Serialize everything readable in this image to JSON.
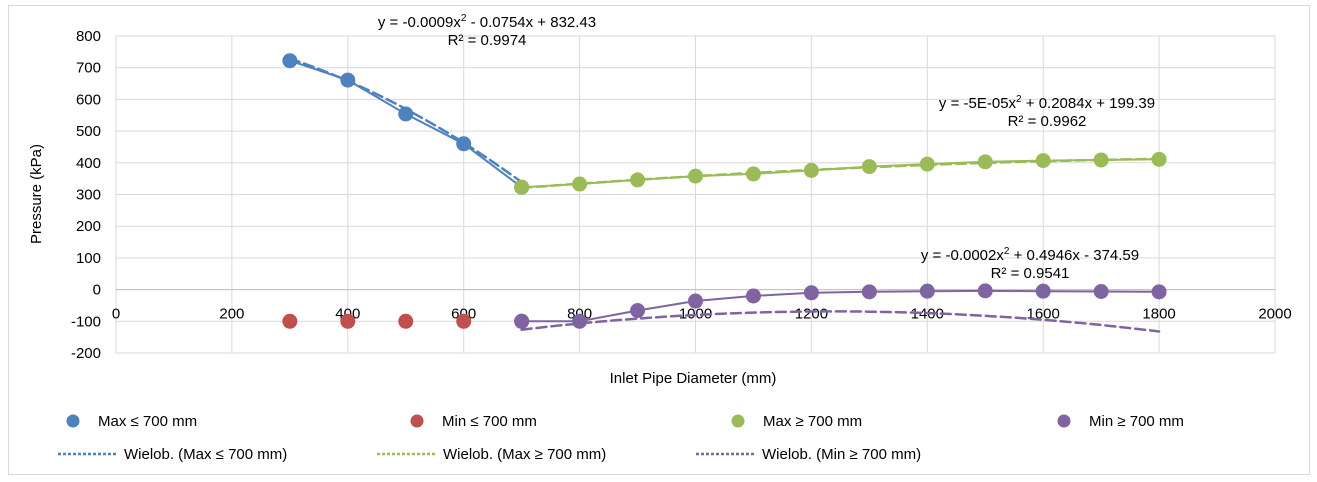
{
  "chart_data": {
    "type": "scatter",
    "xlabel": "Inlet Pipe Diameter (mm)",
    "ylabel": "Pressure (kPa)",
    "xlim": [
      0,
      2000
    ],
    "ylim": [
      -200,
      800
    ],
    "xticks": [
      "0",
      "200",
      "400",
      "600",
      "800",
      "1000",
      "1200",
      "1400",
      "1600",
      "1800",
      "2000"
    ],
    "yticks": [
      "800",
      "700",
      "600",
      "500",
      "400",
      "300",
      "200",
      "100",
      "0",
      "-100",
      "-200"
    ],
    "grid": true,
    "legend_position": "bottom",
    "series": [
      {
        "name": "Max ≤ 700 mm",
        "color": "#4f81bd",
        "points": [
          [
            300,
            722
          ],
          [
            400,
            661
          ],
          [
            500,
            554
          ],
          [
            600,
            460
          ],
          [
            700,
            323
          ]
        ]
      },
      {
        "name": "Min ≤ 700 mm",
        "color": "#c0504d",
        "points": [
          [
            300,
            -100
          ],
          [
            400,
            -100
          ],
          [
            500,
            -100
          ],
          [
            600,
            -100
          ],
          [
            700,
            -100
          ]
        ]
      },
      {
        "name": "Max ≥ 700 mm",
        "color": "#9bbb59",
        "points": [
          [
            700,
            323
          ],
          [
            800,
            333
          ],
          [
            900,
            346
          ],
          [
            1000,
            358
          ],
          [
            1100,
            365
          ],
          [
            1200,
            376
          ],
          [
            1300,
            388
          ],
          [
            1400,
            396
          ],
          [
            1500,
            403
          ],
          [
            1600,
            407
          ],
          [
            1700,
            409
          ],
          [
            1800,
            411
          ]
        ]
      },
      {
        "name": "Min ≥ 700 mm",
        "color": "#8064a2",
        "points": [
          [
            700,
            -100
          ],
          [
            800,
            -100
          ],
          [
            900,
            -66
          ],
          [
            1000,
            -36
          ],
          [
            1100,
            -20
          ],
          [
            1200,
            -10
          ],
          [
            1300,
            -7
          ],
          [
            1400,
            -5
          ],
          [
            1500,
            -4
          ],
          [
            1600,
            -5
          ],
          [
            1700,
            -6
          ],
          [
            1800,
            -7
          ]
        ]
      }
    ],
    "trendlines": [
      {
        "name": "Wielob. (Max ≤ 700 mm)",
        "color": "#4f81bd",
        "coef": [
          -0.0009,
          -0.0754,
          832.43
        ],
        "range": [
          300,
          700
        ],
        "equation_base": "y = -0.0009x",
        "equation_sup": "2",
        "equation_tail": " - 0.0754x + 832.43",
        "r2": "R² = 0.9974"
      },
      {
        "name": "Wielob. (Max ≥ 700 mm)",
        "color": "#9bbb59",
        "coef": [
          -5e-05,
          0.2084,
          199.39
        ],
        "range": [
          700,
          1800
        ],
        "equation_base": "y = -5E-05x",
        "equation_sup": "2",
        "equation_tail": " + 0.2084x + 199.39",
        "r2": "R² = 0.9962"
      },
      {
        "name": "Wielob. (Min ≥ 700 mm)",
        "color": "#8064a2",
        "coef": [
          -0.0002,
          0.4946,
          -374.59
        ],
        "range": [
          700,
          1800
        ],
        "equation_base": "y = -0.0002x",
        "equation_sup": "2",
        "equation_tail": " + 0.4946x - 374.59",
        "r2": "R² = 0.9541"
      }
    ]
  }
}
